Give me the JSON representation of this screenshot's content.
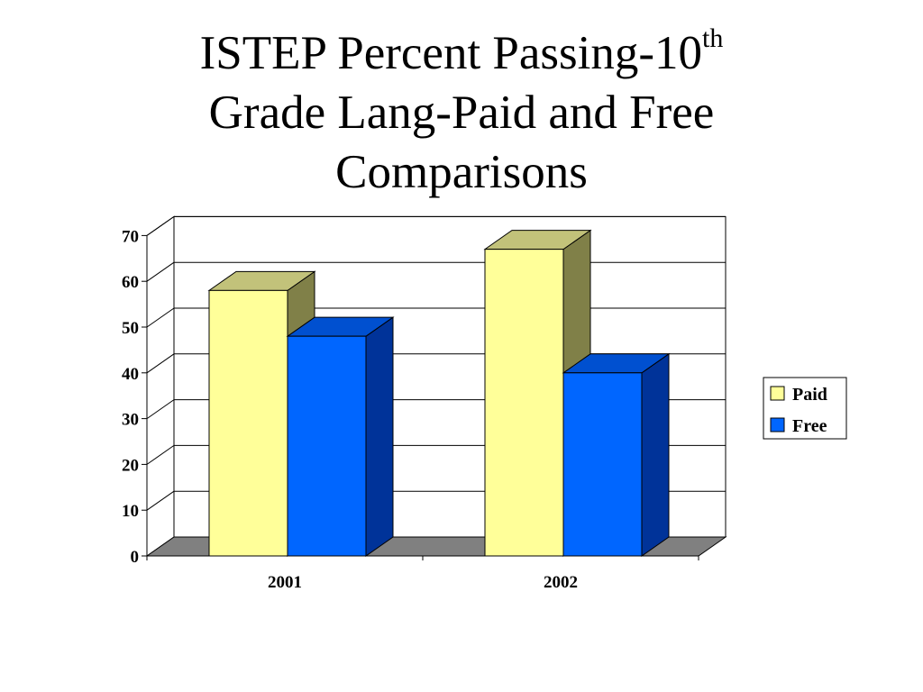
{
  "title": {
    "line1_main": "ISTEP Percent Passing-10",
    "line1_sup": "th",
    "line2": "Grade Lang-Paid and Free",
    "line3": "Comparisons"
  },
  "chart_data": {
    "type": "bar",
    "title": "ISTEP Percent Passing-10th Grade Lang-Paid and Free Comparisons",
    "categories": [
      "2001",
      "2002"
    ],
    "series": [
      {
        "name": "Paid",
        "values": [
          58,
          67
        ],
        "color": "#FFFF99",
        "top_color": "#C2C27A",
        "side_color": "#808048"
      },
      {
        "name": "Free",
        "values": [
          48,
          40
        ],
        "color": "#0066FF",
        "top_color": "#0050D0",
        "side_color": "#003399"
      }
    ],
    "yticks": [
      "0",
      "10",
      "20",
      "30",
      "40",
      "50",
      "60",
      "70"
    ],
    "ylim": [
      0,
      70
    ],
    "grid": true,
    "style": "3d-clustered-column",
    "floor_color": "#808080",
    "legend_position": "right"
  }
}
